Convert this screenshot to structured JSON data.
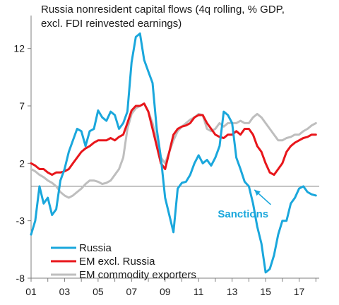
{
  "chart_data": {
    "type": "line",
    "title_lines": [
      "Russia nonresident  capital flows (4q rolling, % GDP,",
      "excl. FDI reinvested  earnings)"
    ],
    "x_ticks": [
      "01",
      "03",
      "05",
      "07",
      "09",
      "11",
      "13",
      "15",
      "17"
    ],
    "y_ticks": [
      12,
      7,
      2,
      -3,
      -8
    ],
    "xlim": [
      2001,
      2018.2
    ],
    "ylim": [
      -8,
      14.5
    ],
    "zero_line": true,
    "annotation": {
      "text": "Sanctions",
      "color": "#1aa7dc",
      "point": [
        2014.5,
        0
      ],
      "label_pos": [
        2013.2,
        -2.7
      ]
    },
    "legend": {
      "placement": "bottom-left"
    },
    "series": [
      {
        "name": "Russia",
        "color": "#1aa7dc",
        "x": [
          2001.0,
          2001.25,
          2001.5,
          2001.75,
          2002.0,
          2002.25,
          2002.5,
          2002.75,
          2003.0,
          2003.25,
          2003.5,
          2003.75,
          2004.0,
          2004.25,
          2004.5,
          2004.75,
          2005.0,
          2005.25,
          2005.5,
          2005.75,
          2006.0,
          2006.25,
          2006.5,
          2006.75,
          2007.0,
          2007.25,
          2007.5,
          2007.75,
          2008.0,
          2008.25,
          2008.5,
          2008.75,
          2009.0,
          2009.25,
          2009.5,
          2009.75,
          2010.0,
          2010.25,
          2010.5,
          2010.75,
          2011.0,
          2011.25,
          2011.5,
          2011.75,
          2012.0,
          2012.25,
          2012.5,
          2012.75,
          2013.0,
          2013.25,
          2013.5,
          2013.75,
          2014.0,
          2014.25,
          2014.5,
          2014.75,
          2015.0,
          2015.25,
          2015.5,
          2015.75,
          2016.0,
          2016.25,
          2016.5,
          2016.75,
          2017.0,
          2017.25,
          2017.5,
          2017.75,
          2018.0
        ],
        "values": [
          -4.2,
          -3.0,
          0.0,
          -1.5,
          -1.0,
          -2.5,
          -2.0,
          0.5,
          1.5,
          3.0,
          4.0,
          5.0,
          4.8,
          3.5,
          4.8,
          5.0,
          6.6,
          6.0,
          5.7,
          6.5,
          6.2,
          5.0,
          5.5,
          6.5,
          10.8,
          13.0,
          13.3,
          11.0,
          10.0,
          9.0,
          5.0,
          2.5,
          -1.0,
          -2.5,
          -4.0,
          -0.2,
          0.3,
          0.4,
          1.0,
          2.0,
          2.7,
          2.0,
          2.3,
          1.8,
          2.5,
          3.5,
          6.5,
          6.2,
          5.5,
          2.5,
          1.5,
          0.4,
          0.0,
          -1.5,
          -3.5,
          -5.0,
          -7.5,
          -7.2,
          -6.0,
          -4.2,
          -3.0,
          -3.0,
          -1.5,
          -1.0,
          -0.2,
          0.0,
          -0.5,
          -0.7,
          -0.8
        ]
      },
      {
        "name": "EM excl. Russia",
        "color": "#e8161b",
        "x": [
          2001.0,
          2001.25,
          2001.5,
          2001.75,
          2002.0,
          2002.25,
          2002.5,
          2002.75,
          2003.0,
          2003.25,
          2003.5,
          2003.75,
          2004.0,
          2004.25,
          2004.5,
          2004.75,
          2005.0,
          2005.25,
          2005.5,
          2005.75,
          2006.0,
          2006.25,
          2006.5,
          2006.75,
          2007.0,
          2007.25,
          2007.5,
          2007.75,
          2008.0,
          2008.25,
          2008.5,
          2008.75,
          2009.0,
          2009.25,
          2009.5,
          2009.75,
          2010.0,
          2010.25,
          2010.5,
          2010.75,
          2011.0,
          2011.25,
          2011.5,
          2011.75,
          2012.0,
          2012.25,
          2012.5,
          2012.75,
          2013.0,
          2013.25,
          2013.5,
          2013.75,
          2014.0,
          2014.25,
          2014.5,
          2014.75,
          2015.0,
          2015.25,
          2015.5,
          2015.75,
          2016.0,
          2016.25,
          2016.5,
          2016.75,
          2017.0,
          2017.25,
          2017.5,
          2017.75,
          2018.0
        ],
        "values": [
          2.0,
          1.8,
          1.5,
          1.5,
          1.2,
          1.0,
          1.2,
          1.2,
          1.3,
          1.5,
          2.0,
          2.5,
          3.0,
          3.3,
          3.5,
          3.8,
          4.0,
          4.0,
          4.0,
          4.2,
          4.0,
          4.3,
          4.5,
          5.5,
          6.6,
          7.0,
          7.0,
          7.2,
          6.5,
          5.0,
          3.5,
          2.0,
          1.5,
          3.0,
          4.5,
          5.0,
          5.2,
          5.3,
          5.5,
          6.0,
          6.2,
          6.2,
          5.5,
          5.0,
          4.5,
          4.3,
          4.2,
          4.5,
          4.5,
          4.8,
          4.5,
          5.0,
          5.0,
          4.5,
          3.5,
          3.0,
          2.0,
          1.2,
          1.0,
          1.5,
          2.0,
          3.0,
          3.5,
          3.8,
          4.0,
          4.2,
          4.3,
          4.5,
          4.5
        ]
      },
      {
        "name": "EM commodity exporters",
        "color": "#bebebe",
        "x": [
          2001.0,
          2001.25,
          2001.5,
          2001.75,
          2002.0,
          2002.25,
          2002.5,
          2002.75,
          2003.0,
          2003.25,
          2003.5,
          2003.75,
          2004.0,
          2004.25,
          2004.5,
          2004.75,
          2005.0,
          2005.25,
          2005.5,
          2005.75,
          2006.0,
          2006.25,
          2006.5,
          2006.75,
          2007.0,
          2007.25,
          2007.5,
          2007.75,
          2008.0,
          2008.25,
          2008.5,
          2008.75,
          2009.0,
          2009.25,
          2009.5,
          2009.75,
          2010.0,
          2010.25,
          2010.5,
          2010.75,
          2011.0,
          2011.25,
          2011.5,
          2011.75,
          2012.0,
          2012.25,
          2012.5,
          2012.75,
          2013.0,
          2013.25,
          2013.5,
          2013.75,
          2014.0,
          2014.25,
          2014.5,
          2014.75,
          2015.0,
          2015.25,
          2015.5,
          2015.75,
          2016.0,
          2016.25,
          2016.5,
          2016.75,
          2017.0,
          2017.25,
          2017.5,
          2017.75,
          2018.0
        ],
        "values": [
          1.5,
          1.3,
          1.0,
          0.8,
          0.5,
          0.3,
          0.0,
          -0.5,
          -0.8,
          -1.0,
          -0.8,
          -0.5,
          -0.2,
          0.2,
          0.5,
          0.5,
          0.4,
          0.2,
          0.3,
          0.5,
          1.0,
          1.5,
          2.5,
          5.0,
          6.3,
          6.8,
          7.0,
          7.2,
          6.5,
          5.5,
          4.0,
          2.5,
          2.0,
          3.0,
          4.0,
          4.8,
          5.2,
          5.5,
          5.8,
          6.0,
          6.3,
          6.2,
          5.0,
          4.8,
          5.0,
          5.5,
          5.2,
          5.5,
          5.5,
          5.5,
          5.7,
          5.5,
          5.5,
          6.0,
          6.3,
          6.0,
          5.5,
          5.0,
          4.5,
          4.0,
          4.0,
          4.2,
          4.3,
          4.5,
          4.5,
          4.8,
          5.0,
          5.3,
          5.5
        ]
      }
    ]
  }
}
